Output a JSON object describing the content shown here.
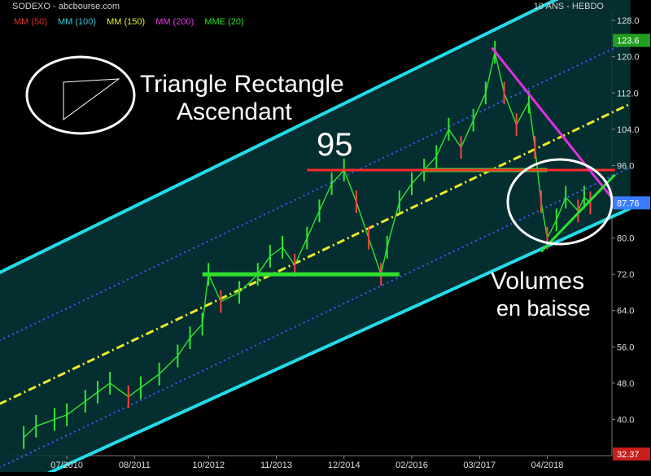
{
  "header": {
    "title": "SODEXO - abcbourse.com",
    "period": "10 ANS - HEBDO"
  },
  "legend": [
    {
      "label": "MM (50)",
      "color": "#e0302a"
    },
    {
      "label": "MM (100)",
      "color": "#36c9d6"
    },
    {
      "label": "MM (150)",
      "color": "#ecec2a"
    },
    {
      "label": "MM (200)",
      "color": "#e040e0"
    },
    {
      "label": "MME (20)",
      "color": "#30e030"
    }
  ],
  "annotations": {
    "pattern_title_line1": "Triangle Rectangle",
    "pattern_title_line2": "Ascendant",
    "resistance_label": "95",
    "volume_line1": "Volumes",
    "volume_line2": "en baisse"
  },
  "chart_data": {
    "type": "candlestick",
    "title": "SODEXO - abcbourse.com",
    "subtitle": "10 ANS - HEBDO",
    "x_ticks": [
      "07/2010",
      "08/2011",
      "10/2012",
      "11/2013",
      "12/2014",
      "02/2016",
      "03/2017",
      "04/2018"
    ],
    "y_ticks": [
      40,
      48,
      56,
      64,
      72,
      80,
      88,
      96,
      104,
      112,
      120,
      128
    ],
    "y_range": [
      32,
      130
    ],
    "price_markers": [
      {
        "value": 123.6,
        "label": "123.6",
        "color": "#1f9e1f"
      },
      {
        "value": 87.76,
        "label": "87.76",
        "color": "#3a7bff"
      },
      {
        "value": 32.37,
        "label": "32.37",
        "color": "#c81e1e"
      }
    ],
    "series": [
      {
        "x": 2009.8,
        "y": 36
      },
      {
        "x": 2010.0,
        "y": 38.5
      },
      {
        "x": 2010.3,
        "y": 40
      },
      {
        "x": 2010.5,
        "y": 41
      },
      {
        "x": 2010.8,
        "y": 44
      },
      {
        "x": 2011.0,
        "y": 46
      },
      {
        "x": 2011.2,
        "y": 48
      },
      {
        "x": 2011.5,
        "y": 45
      },
      {
        "x": 2011.7,
        "y": 47
      },
      {
        "x": 2012.0,
        "y": 50
      },
      {
        "x": 2012.3,
        "y": 54
      },
      {
        "x": 2012.5,
        "y": 58
      },
      {
        "x": 2012.7,
        "y": 61
      },
      {
        "x": 2012.8,
        "y": 72
      },
      {
        "x": 2013.0,
        "y": 66
      },
      {
        "x": 2013.3,
        "y": 68
      },
      {
        "x": 2013.6,
        "y": 72
      },
      {
        "x": 2013.8,
        "y": 76
      },
      {
        "x": 2014.0,
        "y": 78
      },
      {
        "x": 2014.2,
        "y": 74
      },
      {
        "x": 2014.4,
        "y": 80
      },
      {
        "x": 2014.6,
        "y": 86
      },
      {
        "x": 2014.8,
        "y": 92
      },
      {
        "x": 2015.0,
        "y": 95
      },
      {
        "x": 2015.2,
        "y": 88
      },
      {
        "x": 2015.4,
        "y": 80
      },
      {
        "x": 2015.6,
        "y": 72
      },
      {
        "x": 2015.7,
        "y": 78
      },
      {
        "x": 2015.9,
        "y": 88
      },
      {
        "x": 2016.1,
        "y": 92
      },
      {
        "x": 2016.3,
        "y": 95
      },
      {
        "x": 2016.5,
        "y": 98
      },
      {
        "x": 2016.7,
        "y": 104
      },
      {
        "x": 2016.9,
        "y": 100
      },
      {
        "x": 2017.1,
        "y": 106
      },
      {
        "x": 2017.3,
        "y": 112
      },
      {
        "x": 2017.45,
        "y": 121
      },
      {
        "x": 2017.6,
        "y": 112
      },
      {
        "x": 2017.8,
        "y": 105
      },
      {
        "x": 2018.0,
        "y": 110
      },
      {
        "x": 2018.1,
        "y": 100
      },
      {
        "x": 2018.2,
        "y": 88
      },
      {
        "x": 2018.3,
        "y": 80
      },
      {
        "x": 2018.45,
        "y": 84
      },
      {
        "x": 2018.6,
        "y": 89
      },
      {
        "x": 2018.8,
        "y": 86
      },
      {
        "x": 2018.9,
        "y": 89
      },
      {
        "x": 2019.0,
        "y": 87.76
      }
    ],
    "trend_channel": {
      "color": "#22dce8",
      "upper": [
        {
          "x": 2009.5,
          "y": 73
        },
        {
          "x": 2019.4,
          "y": 139
        }
      ],
      "lower": [
        {
          "x": 2010.5,
          "y": 30
        },
        {
          "x": 2019.4,
          "y": 85
        }
      ],
      "mid": [
        {
          "x": 2009.5,
          "y": 44
        },
        {
          "x": 2019.4,
          "y": 108
        }
      ]
    },
    "resistance_95": {
      "value": 95,
      "color": "#ff2a2a",
      "x_range": [
        2014.4,
        2019.4
      ]
    },
    "support_zones": [
      {
        "value": 72,
        "x_range": [
          2012.7,
          2015.9
        ],
        "color": "#30e030"
      },
      {
        "value": 95,
        "x_range": [
          2016.3,
          2018.3
        ],
        "color": "#30e030"
      }
    ],
    "falling_resistance": {
      "color": "#e030e0",
      "from": {
        "x": 2017.4,
        "y": 122
      },
      "to": {
        "x": 2019.4,
        "y": 88
      }
    },
    "rising_support": {
      "color": "#30e030",
      "from": {
        "x": 2018.2,
        "y": 77
      },
      "to": {
        "x": 2019.4,
        "y": 94
      }
    }
  }
}
